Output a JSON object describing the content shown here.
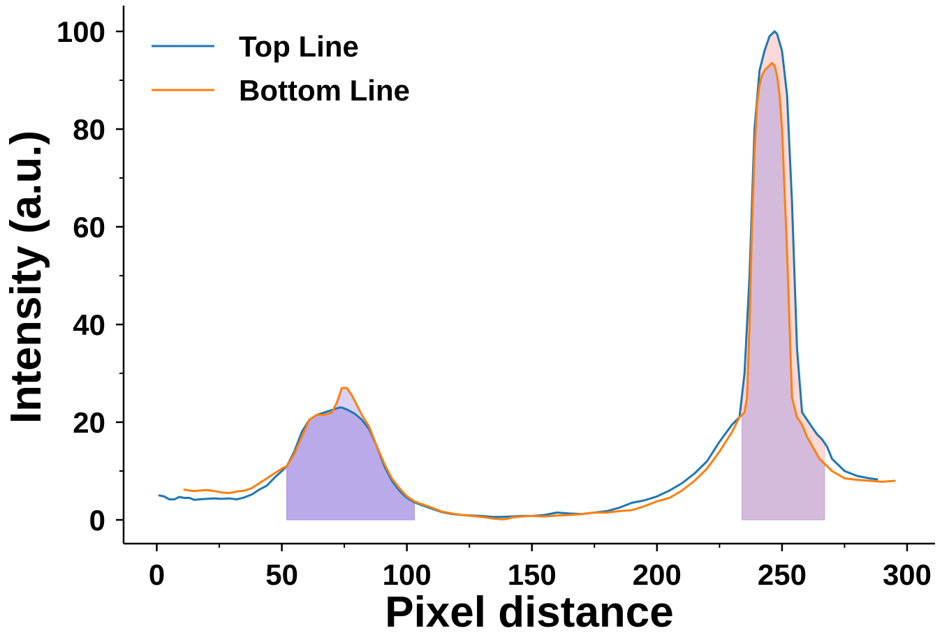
{
  "chart_data": {
    "type": "line",
    "xlabel": "Pixel distance",
    "ylabel": "Intensity (a.u.)",
    "xlim": [
      -13,
      312
    ],
    "ylim": [
      -5,
      105
    ],
    "x_ticks": [
      0,
      50,
      100,
      150,
      200,
      250,
      300
    ],
    "x_tick_labels": [
      "0",
      "50",
      "100",
      "150",
      "200",
      "250",
      "300"
    ],
    "y_ticks": [
      0,
      20,
      40,
      60,
      80,
      100
    ],
    "y_tick_labels": [
      "0",
      "20",
      "40",
      "60",
      "80",
      "100"
    ],
    "legend": {
      "position": "top-left"
    },
    "series": [
      {
        "name": "Top Line",
        "color": "#1f77b4",
        "x": [
          1,
          3,
          5,
          7,
          9,
          11,
          13,
          15,
          17,
          20,
          23,
          26,
          29,
          32,
          35,
          38,
          41,
          44,
          47,
          50,
          52,
          55,
          58,
          61,
          64,
          67,
          70,
          73,
          74,
          76,
          79,
          82,
          85,
          88,
          91,
          94,
          97,
          100,
          103,
          106,
          110,
          114,
          118,
          122,
          126,
          130,
          134,
          138,
          142,
          146,
          150,
          155,
          160,
          165,
          170,
          175,
          180,
          185,
          190,
          195,
          200,
          205,
          210,
          215,
          220,
          225,
          230,
          233,
          235,
          237,
          239,
          241,
          243,
          245,
          247,
          248,
          250,
          252,
          254,
          256,
          258,
          260,
          262,
          264,
          266,
          268,
          270,
          275,
          280,
          285,
          288
        ],
        "y": [
          5.0,
          4.8,
          4.2,
          4.2,
          4.7,
          4.5,
          4.5,
          4.1,
          4.2,
          4.3,
          4.4,
          4.3,
          4.4,
          4.2,
          4.6,
          5.2,
          6.2,
          7.0,
          8.6,
          10.0,
          11.0,
          14.0,
          18.0,
          20.5,
          21.5,
          22.0,
          22.5,
          23.0,
          23.0,
          22.6,
          21.8,
          20.5,
          18.5,
          15.0,
          11.0,
          8.0,
          6.0,
          4.5,
          3.6,
          3.0,
          2.3,
          1.6,
          1.2,
          1.0,
          0.9,
          0.8,
          0.6,
          0.6,
          0.7,
          0.8,
          0.8,
          1.0,
          1.5,
          1.3,
          1.2,
          1.5,
          1.8,
          2.5,
          3.5,
          4.0,
          4.8,
          6.0,
          7.5,
          9.5,
          12.0,
          16.0,
          19.5,
          21.0,
          30.0,
          50.0,
          80.0,
          92.0,
          96.0,
          99.0,
          100.0,
          99.5,
          96.0,
          87.0,
          65.0,
          35.0,
          22.0,
          20.5,
          19.0,
          17.5,
          16.5,
          15.0,
          12.5,
          10.0,
          9.0,
          8.5,
          8.3
        ]
      },
      {
        "name": "Bottom Line",
        "color": "#ff7f0e",
        "x": [
          11,
          13,
          15,
          17,
          20,
          23,
          26,
          29,
          32,
          35,
          38,
          41,
          44,
          47,
          50,
          52,
          55,
          58,
          61,
          64,
          67,
          70,
          72,
          74,
          76,
          78,
          80,
          82,
          85,
          88,
          91,
          94,
          97,
          100,
          103,
          106,
          110,
          114,
          118,
          122,
          126,
          130,
          134,
          138,
          140,
          142,
          146,
          150,
          155,
          160,
          165,
          170,
          175,
          180,
          185,
          190,
          195,
          200,
          205,
          210,
          215,
          220,
          225,
          230,
          233,
          235,
          236,
          237,
          238,
          239,
          240,
          241,
          242,
          243,
          244,
          245,
          246,
          247,
          248,
          249,
          250,
          252,
          254,
          256,
          258,
          260,
          265,
          270,
          275,
          280,
          285,
          290,
          295
        ],
        "y": [
          6.2,
          6.0,
          5.9,
          6.0,
          6.1,
          5.9,
          5.6,
          5.5,
          5.8,
          6.0,
          6.5,
          7.5,
          8.5,
          9.5,
          10.5,
          11.0,
          13.5,
          17.0,
          20.5,
          21.5,
          21.5,
          22.0,
          24.0,
          27.0,
          27.0,
          25.5,
          23.5,
          21.5,
          19.0,
          15.0,
          11.5,
          8.5,
          6.5,
          4.8,
          3.8,
          3.2,
          2.5,
          1.7,
          1.3,
          1.0,
          0.8,
          0.6,
          0.3,
          0.1,
          0.2,
          0.5,
          0.7,
          0.8,
          0.7,
          0.9,
          1.0,
          1.2,
          1.5,
          1.5,
          1.8,
          2.0,
          2.8,
          3.8,
          4.5,
          6.0,
          8.0,
          10.5,
          14.0,
          18.0,
          21.0,
          22.0,
          25.0,
          40.0,
          60.0,
          75.0,
          85.0,
          89.0,
          91.0,
          92.0,
          92.5,
          93.0,
          93.5,
          93.0,
          91.0,
          87.0,
          80.0,
          55.0,
          25.0,
          21.0,
          19.5,
          17.0,
          12.5,
          10.0,
          8.5,
          8.2,
          8.0,
          7.8,
          8.0
        ]
      }
    ],
    "filled_regions": [
      {
        "name": "Top Line",
        "x_start": 52,
        "x_end": 103,
        "color": "#7b5cc9"
      },
      {
        "name": "Bottom Line",
        "x_start": 52,
        "x_end": 103,
        "color": "#a68ce8"
      },
      {
        "name": "Top Line",
        "x_start": 234,
        "x_end": 267,
        "color": "#f4a0a0"
      },
      {
        "name": "Bottom Line",
        "x_start": 234,
        "x_end": 267,
        "color": "#9c8fe0"
      }
    ]
  }
}
